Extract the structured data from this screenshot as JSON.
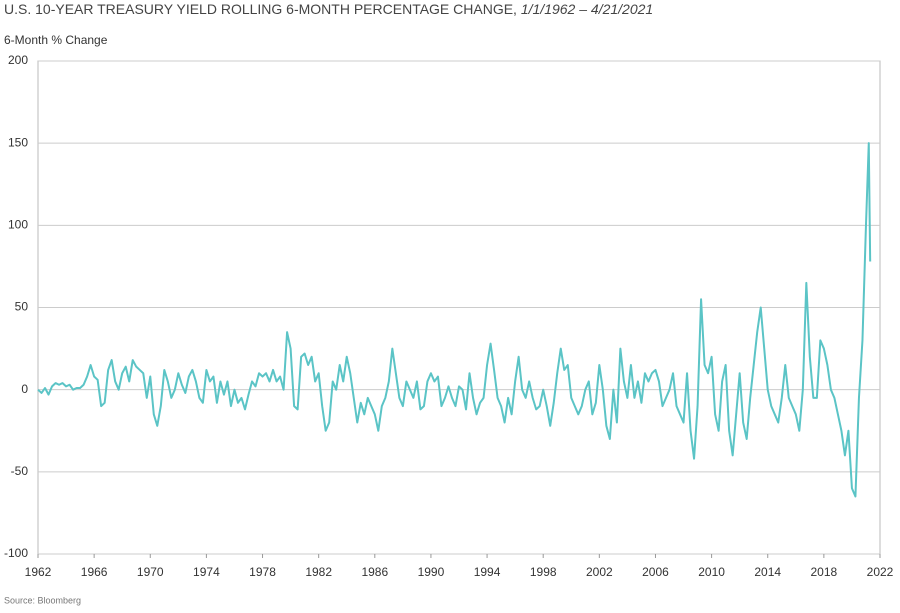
{
  "chart_data": {
    "type": "line",
    "title": "U.S. 10-YEAR TREASURY YIELD ROLLING 6-MONTH PERCENTAGE CHANGE, ",
    "title_dates": "1/1/1962 – 4/21/2021",
    "y_label": "6-Month % Change",
    "source": "Source: Bloomberg",
    "color": "#5bc4c6",
    "grid": true,
    "xlim": [
      1962,
      2022
    ],
    "xticks": [
      1962,
      1966,
      1970,
      1974,
      1978,
      1982,
      1986,
      1990,
      1994,
      1998,
      2002,
      2006,
      2010,
      2014,
      2018,
      2022
    ],
    "ylim": [
      -100,
      200
    ],
    "yticks": [
      -100,
      -50,
      0,
      50,
      100,
      150,
      200
    ],
    "x": [
      1962,
      1962.25,
      1962.5,
      1962.75,
      1963,
      1963.25,
      1963.5,
      1963.75,
      1964,
      1964.25,
      1964.5,
      1964.75,
      1965,
      1965.25,
      1965.5,
      1965.75,
      1966,
      1966.25,
      1966.5,
      1966.75,
      1967,
      1967.25,
      1967.5,
      1967.75,
      1968,
      1968.25,
      1968.5,
      1968.75,
      1969,
      1969.25,
      1969.5,
      1969.75,
      1970,
      1970.25,
      1970.5,
      1970.75,
      1971,
      1971.25,
      1971.5,
      1971.75,
      1972,
      1972.25,
      1972.5,
      1972.75,
      1973,
      1973.25,
      1973.5,
      1973.75,
      1974,
      1974.25,
      1974.5,
      1974.75,
      1975,
      1975.25,
      1975.5,
      1975.75,
      1976,
      1976.25,
      1976.5,
      1976.75,
      1977,
      1977.25,
      1977.5,
      1977.75,
      1978,
      1978.25,
      1978.5,
      1978.75,
      1979,
      1979.25,
      1979.5,
      1979.75,
      1980,
      1980.25,
      1980.5,
      1980.75,
      1981,
      1981.25,
      1981.5,
      1981.75,
      1982,
      1982.25,
      1982.5,
      1982.75,
      1983,
      1983.25,
      1983.5,
      1983.75,
      1984,
      1984.25,
      1984.5,
      1984.75,
      1985,
      1985.25,
      1985.5,
      1985.75,
      1986,
      1986.25,
      1986.5,
      1986.75,
      1987,
      1987.25,
      1987.5,
      1987.75,
      1988,
      1988.25,
      1988.5,
      1988.75,
      1989,
      1989.25,
      1989.5,
      1989.75,
      1990,
      1990.25,
      1990.5,
      1990.75,
      1991,
      1991.25,
      1991.5,
      1991.75,
      1992,
      1992.25,
      1992.5,
      1992.75,
      1993,
      1993.25,
      1993.5,
      1993.75,
      1994,
      1994.25,
      1994.5,
      1994.75,
      1995,
      1995.25,
      1995.5,
      1995.75,
      1996,
      1996.25,
      1996.5,
      1996.75,
      1997,
      1997.25,
      1997.5,
      1997.75,
      1998,
      1998.25,
      1998.5,
      1998.75,
      1999,
      1999.25,
      1999.5,
      1999.75,
      2000,
      2000.25,
      2000.5,
      2000.75,
      2001,
      2001.25,
      2001.5,
      2001.75,
      2002,
      2002.25,
      2002.5,
      2002.75,
      2003,
      2003.25,
      2003.5,
      2003.75,
      2004,
      2004.25,
      2004.5,
      2004.75,
      2005,
      2005.25,
      2005.5,
      2005.75,
      2006,
      2006.25,
      2006.5,
      2006.75,
      2007,
      2007.25,
      2007.5,
      2007.75,
      2008,
      2008.25,
      2008.5,
      2008.75,
      2009,
      2009.25,
      2009.5,
      2009.75,
      2010,
      2010.25,
      2010.5,
      2010.75,
      2011,
      2011.25,
      2011.5,
      2011.75,
      2012,
      2012.25,
      2012.5,
      2012.75,
      2013,
      2013.25,
      2013.5,
      2013.75,
      2014,
      2014.25,
      2014.5,
      2014.75,
      2015,
      2015.25,
      2015.5,
      2015.75,
      2016,
      2016.25,
      2016.5,
      2016.75,
      2017,
      2017.25,
      2017.5,
      2017.75,
      2018,
      2018.25,
      2018.5,
      2018.75,
      2019,
      2019.25,
      2019.5,
      2019.75,
      2020,
      2020.25,
      2020.5,
      2020.75,
      2021,
      2021.2,
      2021.3
    ],
    "values": [
      0,
      -2,
      1,
      -3,
      2,
      4,
      3,
      4,
      2,
      3,
      0,
      1,
      1,
      3,
      8,
      15,
      8,
      6,
      -10,
      -8,
      12,
      18,
      5,
      0,
      10,
      14,
      5,
      18,
      14,
      12,
      10,
      -5,
      8,
      -15,
      -22,
      -10,
      12,
      5,
      -5,
      0,
      10,
      3,
      -2,
      8,
      12,
      5,
      -5,
      -8,
      12,
      5,
      8,
      -8,
      5,
      -3,
      5,
      -10,
      0,
      -8,
      -5,
      -12,
      -3,
      5,
      2,
      10,
      8,
      10,
      5,
      12,
      5,
      8,
      0,
      35,
      25,
      -10,
      -12,
      20,
      22,
      15,
      20,
      5,
      10,
      -10,
      -25,
      -20,
      5,
      0,
      15,
      5,
      20,
      10,
      -5,
      -20,
      -8,
      -15,
      -5,
      -10,
      -15,
      -25,
      -10,
      -5,
      5,
      25,
      10,
      -5,
      -10,
      5,
      0,
      -5,
      5,
      -12,
      -10,
      5,
      10,
      5,
      8,
      -10,
      -5,
      2,
      -5,
      -10,
      2,
      0,
      -12,
      10,
      -5,
      -15,
      -8,
      -5,
      15,
      28,
      12,
      -5,
      -10,
      -20,
      -5,
      -15,
      5,
      20,
      0,
      -5,
      5,
      -5,
      -12,
      -10,
      0,
      -10,
      -22,
      -8,
      10,
      25,
      12,
      15,
      -5,
      -10,
      -15,
      -10,
      0,
      5,
      -15,
      -8,
      15,
      0,
      -22,
      -30,
      0,
      -20,
      25,
      5,
      -5,
      15,
      -5,
      5,
      -8,
      10,
      5,
      10,
      12,
      5,
      -10,
      -5,
      0,
      10,
      -10,
      -15,
      -20,
      10,
      -25,
      -42,
      -10,
      55,
      15,
      10,
      20,
      -15,
      -25,
      5,
      15,
      -25,
      -40,
      -15,
      10,
      -20,
      -30,
      -5,
      15,
      35,
      50,
      25,
      0,
      -10,
      -15,
      -20,
      -5,
      15,
      -5,
      -10,
      -15,
      -25,
      0,
      65,
      20,
      -5,
      -5,
      30,
      25,
      15,
      0,
      -5,
      -15,
      -25,
      -40,
      -25,
      -60,
      -65,
      -5,
      30,
      100,
      150,
      78
    ]
  }
}
